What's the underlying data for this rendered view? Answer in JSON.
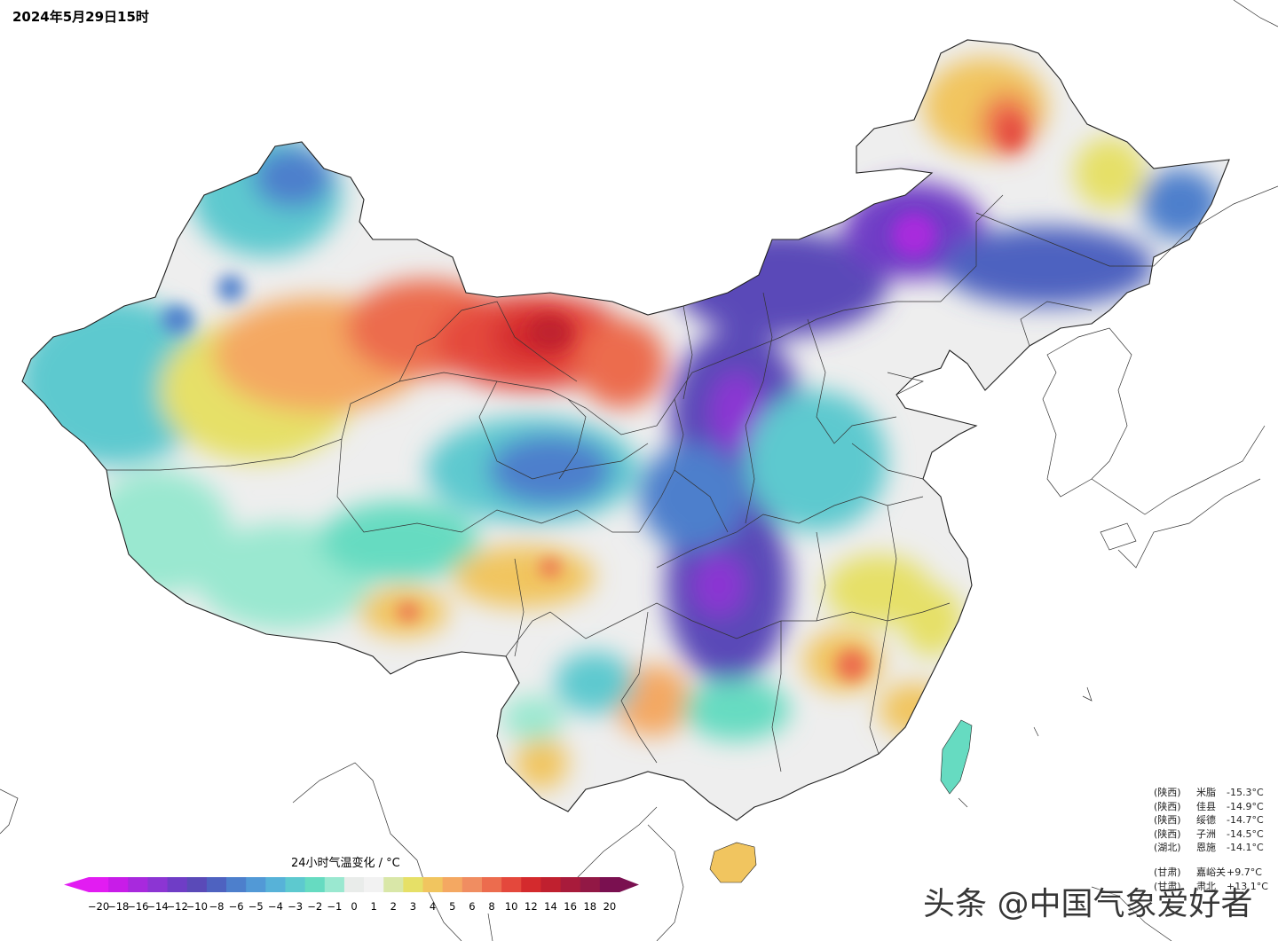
{
  "map": {
    "timestamp": "2024年5月29日15时"
  },
  "legend": {
    "title": "24小时气温变化 / °C",
    "ticks": [
      "-20",
      "-18",
      "-16",
      "-14",
      "-12",
      "-10",
      "-8",
      "-6",
      "-5",
      "-4",
      "-3",
      "-2",
      "-1",
      "0",
      "1",
      "2",
      "3",
      "4",
      "5",
      "6",
      "8",
      "10",
      "12",
      "14",
      "16",
      "18",
      "20"
    ],
    "colors": [
      "#e21cf2",
      "#c81ce8",
      "#a829dd",
      "#8c35d3",
      "#6f3dc6",
      "#5a4ab8",
      "#4e62c0",
      "#4d7fcc",
      "#5299d6",
      "#57b2d8",
      "#5dc9cf",
      "#66dbc1",
      "#9ae8d0",
      "#e9ecea",
      "#f2f2f2",
      "#d9e7a8",
      "#e6e067",
      "#f1c55f",
      "#f4a862",
      "#f08d61",
      "#ec6c4e",
      "#e4483c",
      "#d42a2d",
      "#c0202f",
      "#a81b3b",
      "#921845",
      "#7a1050"
    ]
  },
  "stations_cold": [
    {
      "province": "(陕西)",
      "name": "米脂",
      "value": "-15.3°C"
    },
    {
      "province": "(陕西)",
      "name": "佳县",
      "value": "-14.9°C"
    },
    {
      "province": "(陕西)",
      "name": "绥德",
      "value": "-14.7°C"
    },
    {
      "province": "(陕西)",
      "name": "子洲",
      "value": "-14.5°C"
    },
    {
      "province": "(湖北)",
      "name": "恩施",
      "value": "-14.1°C"
    }
  ],
  "stations_warm": [
    {
      "province": "(甘肃)",
      "name": "嘉峪关",
      "value": "+9.7°C"
    },
    {
      "province": "(甘肃)",
      "name": "肃北",
      "value": "+13.1°C"
    }
  ],
  "watermark": "头条 @中国气象爱好者"
}
